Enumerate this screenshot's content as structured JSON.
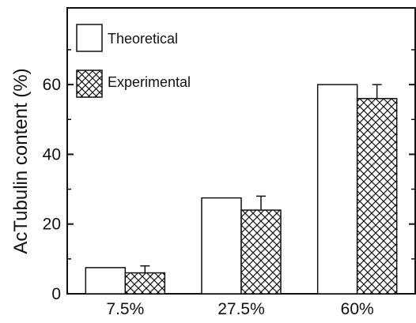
{
  "chart_data": {
    "type": "bar",
    "categories": [
      "7.5%",
      "27.5%",
      "60%"
    ],
    "series": [
      {
        "name": "Theoretical",
        "values": [
          7.5,
          27.5,
          60
        ],
        "pattern": "open"
      },
      {
        "name": "Experimental",
        "values": [
          6,
          24,
          56
        ],
        "errors": [
          2,
          4,
          4
        ],
        "pattern": "crosshatch"
      }
    ],
    "xlabel": "",
    "ylabel": "AcTubulin content (%)",
    "ylim": [
      0,
      82
    ],
    "yticks": [
      0,
      20,
      40,
      60
    ],
    "ytick_labels": [
      "0",
      "20",
      "40",
      "60"
    ],
    "legend_position": "top-left",
    "grid": false,
    "colors": {
      "bar_fill": "#ffffff",
      "bar_stroke": "#111111",
      "hatch": "#111111",
      "axis": "#111111"
    }
  }
}
